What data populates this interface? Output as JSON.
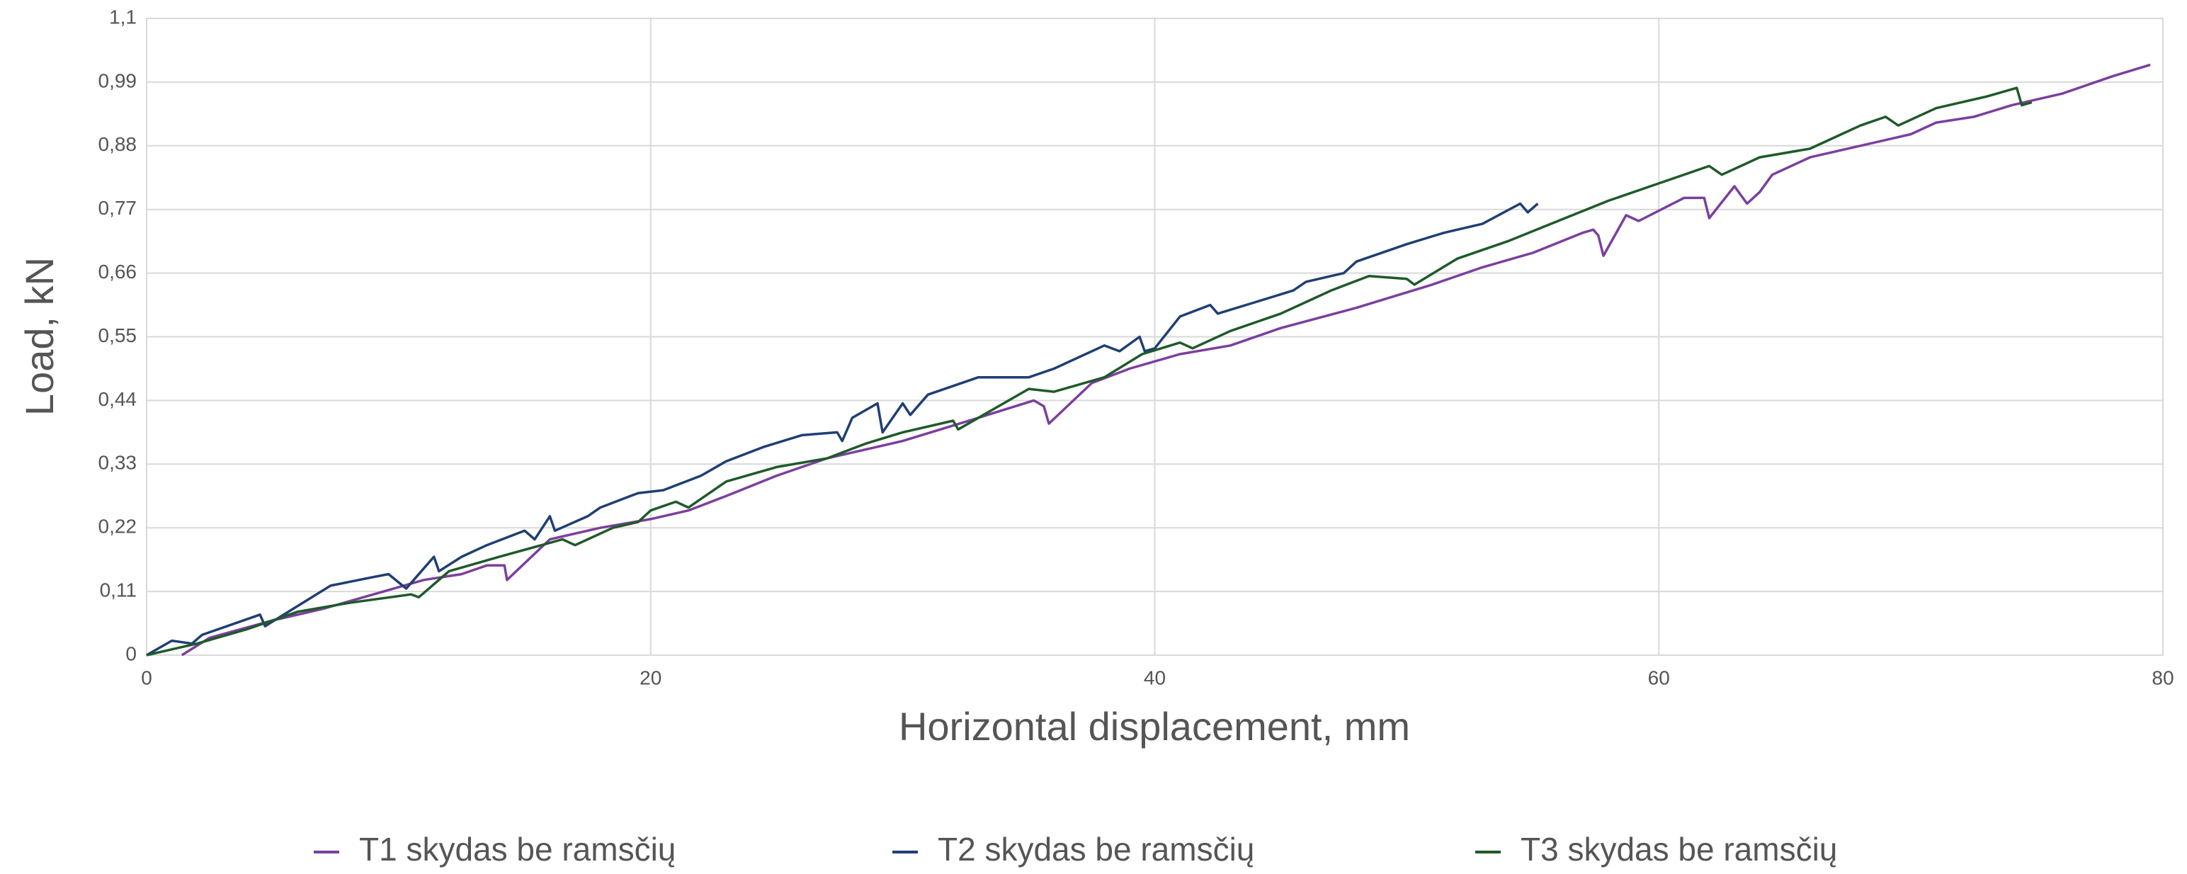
{
  "chart_data": {
    "type": "line",
    "xlabel": "Horizontal displacement, mm",
    "ylabel": "Load, kN",
    "xlim": [
      0,
      80
    ],
    "xticks": [
      0,
      20,
      40,
      60,
      80
    ],
    "ylim": [
      0,
      1.1
    ],
    "yticks": [
      0,
      {
        "value": 0.11,
        "label": "0,11"
      },
      {
        "value": 0.22,
        "label": "0,22"
      },
      {
        "value": 0.33,
        "label": "0,33"
      },
      {
        "value": 0.44,
        "label": "0,44"
      },
      {
        "value": 0.55,
        "label": "0,55"
      },
      {
        "value": 0.66,
        "label": "0,66"
      },
      {
        "value": 0.77,
        "label": "0,77"
      },
      {
        "value": 0.88,
        "label": "0,88"
      },
      {
        "value": 0.99,
        "label": "0,99"
      },
      {
        "value": 1.1,
        "label": "1,1"
      }
    ],
    "grid": true,
    "legend": "bottom",
    "series": [
      {
        "name": "T1 skydas be ramsčių",
        "color": "#7b3f9e",
        "x": [
          1.4,
          2.5,
          5,
          7,
          9,
          11,
          12.5,
          13.5,
          14.2,
          14.3,
          16,
          18,
          20,
          21.5,
          23,
          25,
          27,
          29,
          30,
          33,
          35.2,
          35.6,
          35.8,
          37.5,
          39,
          41,
          43,
          45,
          48,
          51,
          53,
          55,
          57,
          57.4,
          57.6,
          57.8,
          58.7,
          59.2,
          61,
          61.8,
          62,
          63,
          63.5,
          64,
          64.5,
          66,
          68,
          70,
          71,
          72.5,
          74,
          76,
          78,
          79.5
        ],
        "values": [
          0,
          0.03,
          0.06,
          0.08,
          0.105,
          0.13,
          0.14,
          0.155,
          0.155,
          0.13,
          0.2,
          0.22,
          0.235,
          0.25,
          0.275,
          0.31,
          0.34,
          0.36,
          0.37,
          0.41,
          0.44,
          0.43,
          0.4,
          0.47,
          0.495,
          0.52,
          0.535,
          0.565,
          0.6,
          0.64,
          0.67,
          0.695,
          0.73,
          0.735,
          0.725,
          0.69,
          0.76,
          0.75,
          0.79,
          0.79,
          0.755,
          0.81,
          0.78,
          0.8,
          0.83,
          0.86,
          0.88,
          0.9,
          0.92,
          0.93,
          0.95,
          0.97,
          1.0,
          1.02
        ]
      },
      {
        "name": "T2 skydas be ramsčių",
        "color": "#1f3f73",
        "x": [
          0,
          1,
          1.8,
          2.2,
          4.5,
          4.7,
          7.3,
          9,
          9.6,
          10.3,
          10.6,
          11.4,
          11.6,
          12.5,
          13.5,
          15,
          15.4,
          16,
          16.2,
          17.5,
          18,
          19.5,
          20.5,
          22,
          23,
          24.5,
          26,
          27.4,
          27.6,
          28,
          29,
          29.2,
          30,
          30.3,
          31,
          33,
          35,
          36,
          38,
          38.6,
          39.4,
          39.6,
          40,
          41,
          42.2,
          42.5,
          44,
          45.5,
          46,
          47.5,
          48,
          50,
          51.5,
          53,
          54.5,
          54.8,
          55.2
        ],
        "values": [
          0,
          0.025,
          0.02,
          0.035,
          0.07,
          0.05,
          0.12,
          0.135,
          0.14,
          0.115,
          0.13,
          0.17,
          0.145,
          0.17,
          0.19,
          0.215,
          0.2,
          0.24,
          0.215,
          0.24,
          0.255,
          0.28,
          0.285,
          0.31,
          0.335,
          0.36,
          0.38,
          0.385,
          0.37,
          0.41,
          0.435,
          0.385,
          0.435,
          0.415,
          0.45,
          0.48,
          0.48,
          0.495,
          0.535,
          0.525,
          0.55,
          0.525,
          0.53,
          0.585,
          0.605,
          0.59,
          0.61,
          0.63,
          0.645,
          0.66,
          0.68,
          0.71,
          0.73,
          0.745,
          0.78,
          0.765,
          0.78
        ]
      },
      {
        "name": "T3 skydas be ramsčių",
        "color": "#1e5a2a",
        "x": [
          0,
          2,
          4,
          6,
          8,
          10.5,
          10.8,
          12,
          14,
          16.5,
          17,
          18.5,
          19.5,
          20,
          21,
          21.5,
          23,
          25,
          27,
          28.5,
          30,
          32,
          32.2,
          35,
          36,
          38,
          39.5,
          41,
          41.5,
          43,
          45,
          47,
          48.5,
          50,
          50.3,
          52,
          54,
          56,
          58,
          60,
          62,
          62.5,
          64,
          66,
          67,
          68,
          69,
          69.5,
          71,
          73,
          74.2,
          74.4,
          74.8
        ],
        "values": [
          0,
          0.02,
          0.045,
          0.075,
          0.09,
          0.105,
          0.1,
          0.145,
          0.17,
          0.2,
          0.19,
          0.22,
          0.23,
          0.25,
          0.265,
          0.255,
          0.3,
          0.325,
          0.34,
          0.365,
          0.385,
          0.405,
          0.39,
          0.46,
          0.455,
          0.48,
          0.52,
          0.54,
          0.53,
          0.56,
          0.59,
          0.63,
          0.655,
          0.65,
          0.64,
          0.685,
          0.715,
          0.75,
          0.785,
          0.815,
          0.845,
          0.83,
          0.86,
          0.875,
          0.895,
          0.915,
          0.93,
          0.915,
          0.945,
          0.965,
          0.98,
          0.95,
          0.955
        ]
      }
    ]
  }
}
